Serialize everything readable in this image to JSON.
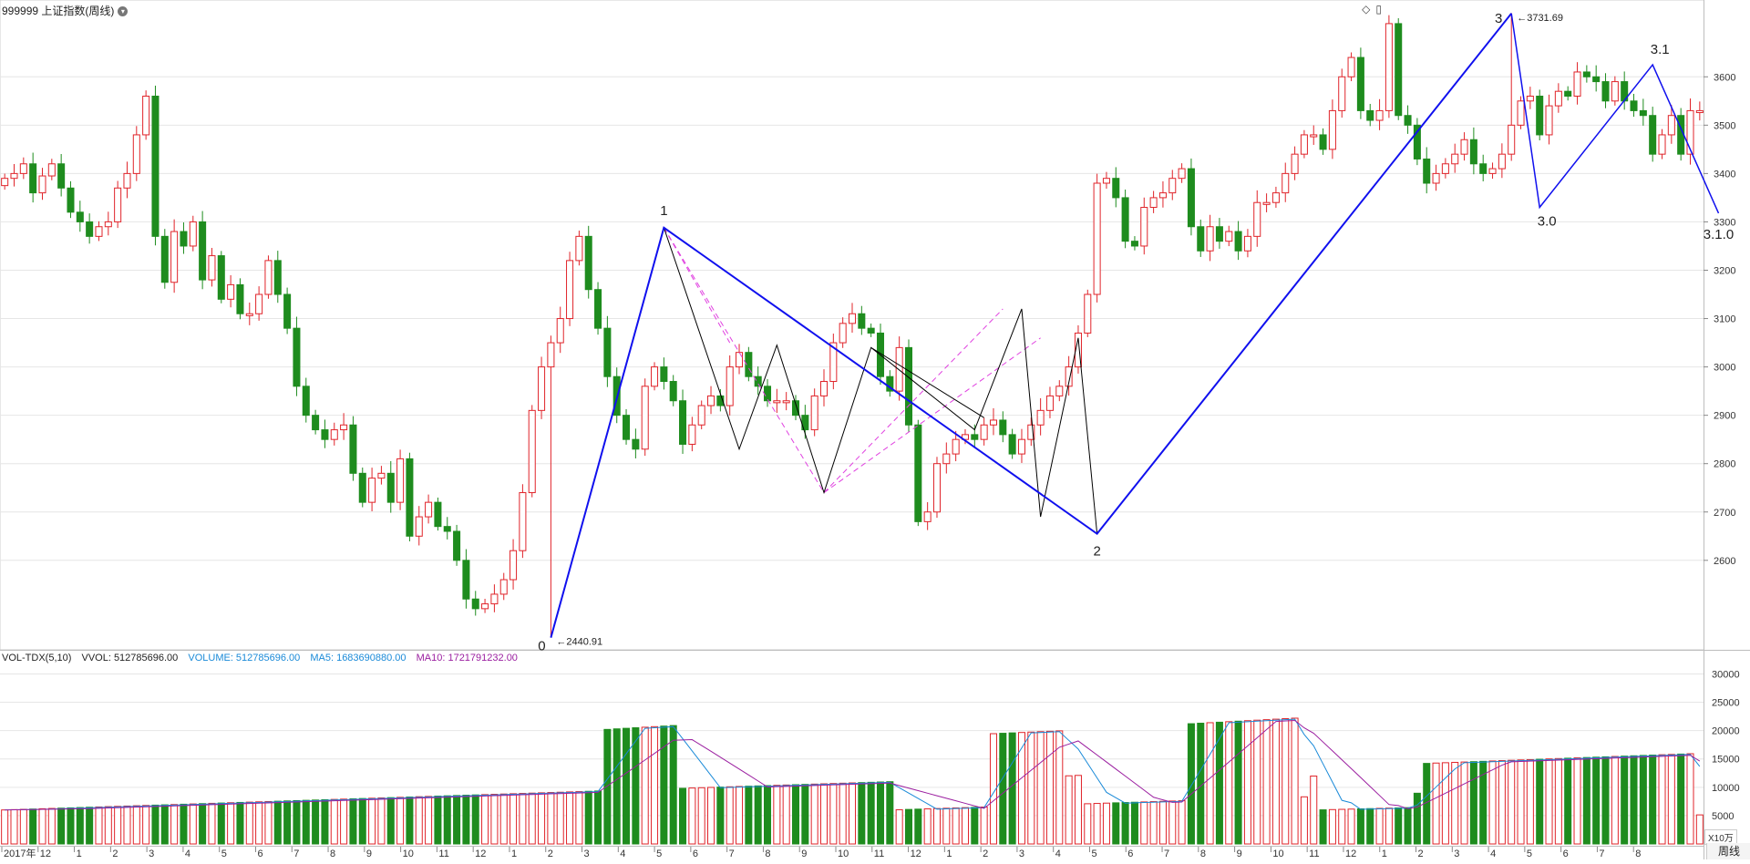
{
  "header": {
    "symbol": "999999",
    "name": "上证指数",
    "period_tag": "(周线)"
  },
  "volume_header": {
    "indicator": "VOL-TDX(5,10)",
    "vvol": "VVOL: 512785696.00",
    "volume": "VOLUME: 512785696.00",
    "ma5": "MA5: 1683690880.00",
    "ma10": "MA10: 1721791232.00"
  },
  "period_button": "周线",
  "unit_label": "X10万",
  "colors": {
    "up": "#e0242a",
    "down": "#1e8c1e",
    "wave_main": "#1010ee",
    "wave_sub": "#000000",
    "projection": "#e040e0",
    "ma5": "#1a8ad8",
    "ma10": "#9b1fa0",
    "grid": "#e6e6e6"
  },
  "chart_data": [
    {
      "type": "candlestick",
      "title": "999999 上证指数 (周线)",
      "period": "weekly",
      "ylim": [
        2430,
        3740
      ],
      "y_ticks": [
        2600,
        2700,
        2800,
        2900,
        3000,
        3100,
        3200,
        3300,
        3400,
        3500,
        3600
      ],
      "x_ticks": [
        "2017年",
        "12",
        "1",
        "2",
        "3",
        "4",
        "5",
        "6",
        "7",
        "8",
        "9",
        "10",
        "11",
        "12",
        "1",
        "2",
        "3",
        "4",
        "5",
        "6",
        "7",
        "8",
        "9",
        "10",
        "11",
        "12",
        "1",
        "2",
        "3",
        "4",
        "5",
        "6",
        "7",
        "8",
        "9",
        "10",
        "11",
        "12",
        "1",
        "2",
        "3",
        "4",
        "5",
        "6",
        "7",
        "8"
      ],
      "closes": [
        3390,
        3400,
        3420,
        3360,
        3395,
        3420,
        3370,
        3320,
        3300,
        3270,
        3290,
        3300,
        3370,
        3400,
        3480,
        3560,
        3270,
        3175,
        3280,
        3250,
        3300,
        3180,
        3230,
        3140,
        3170,
        3110,
        3110,
        3150,
        3220,
        3150,
        3080,
        2960,
        2900,
        2870,
        2850,
        2870,
        2880,
        2780,
        2720,
        2770,
        2780,
        2720,
        2810,
        2650,
        2690,
        2720,
        2670,
        2660,
        2600,
        2520,
        2500,
        2510,
        2530,
        2560,
        2620,
        2740,
        2910,
        3000,
        3050,
        3100,
        3220,
        3270,
        3160,
        3080,
        2980,
        2900,
        2850,
        2830,
        2960,
        3000,
        2970,
        2930,
        2840,
        2880,
        2920,
        2940,
        2920,
        3000,
        3030,
        2980,
        2960,
        2930,
        2930,
        2930,
        2900,
        2870,
        2940,
        2970,
        3050,
        3090,
        3110,
        3080,
        3070,
        2980,
        2950,
        3040,
        2880,
        2680,
        2700,
        2800,
        2820,
        2850,
        2860,
        2850,
        2880,
        2890,
        2860,
        2820,
        2850,
        2880,
        2910,
        2940,
        2960,
        3000,
        3070,
        3150,
        3380,
        3390,
        3350,
        3260,
        3250,
        3330,
        3350,
        3360,
        3390,
        3410,
        3290,
        3240,
        3290,
        3260,
        3280,
        3240,
        3270,
        3340,
        3340,
        3360,
        3400,
        3440,
        3480,
        3480,
        3450,
        3530,
        3600,
        3640,
        3530,
        3510,
        3530,
        3710,
        3520,
        3500,
        3430,
        3380,
        3400,
        3420,
        3440,
        3470,
        3420,
        3400,
        3410,
        3440,
        3500,
        3550,
        3560,
        3480,
        3540,
        3570,
        3560,
        3610,
        3600,
        3590,
        3550,
        3590,
        3550,
        3530,
        3520,
        3440,
        3480,
        3520,
        3440,
        3530,
        3530
      ],
      "annotations": [
        {
          "label": "0",
          "value": "2440.91"
        },
        {
          "label": "1"
        },
        {
          "label": "2"
        },
        {
          "label": "3",
          "value": "3731.69"
        },
        {
          "label": "3.0"
        },
        {
          "label": "3.1"
        },
        {
          "label": "3.1.0"
        }
      ],
      "main_wave": [
        {
          "bar": 58,
          "price": 2440
        },
        {
          "bar": 70,
          "price": 3288
        },
        {
          "bar": 116,
          "price": 2655
        },
        {
          "bar": 160,
          "price": 3731
        },
        {
          "bar": 163,
          "price": 3330
        },
        {
          "bar": 175,
          "price": 3625
        },
        {
          "bar": 182,
          "price": 3318
        }
      ]
    },
    {
      "type": "bar",
      "title": "VOL-TDX(5,10)",
      "ylim": [
        0,
        32000
      ],
      "y_ticks": [
        5000,
        10000,
        15000,
        20000,
        25000,
        30000
      ],
      "unit": "X10万",
      "series": [
        {
          "name": "VOLUME"
        },
        {
          "name": "MA5"
        },
        {
          "name": "MA10"
        }
      ]
    }
  ]
}
